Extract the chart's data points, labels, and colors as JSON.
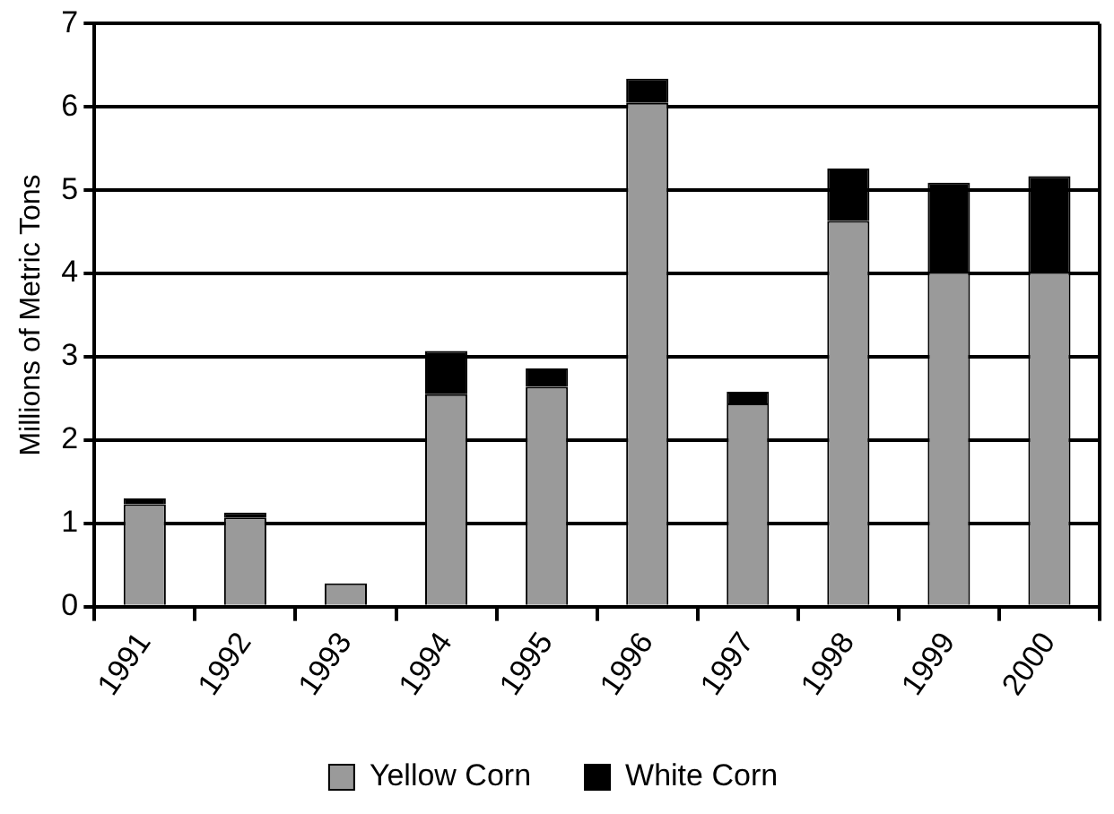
{
  "chart_data": {
    "type": "bar",
    "stacked": true,
    "ylabel": "Millions of Metric Tons",
    "categories": [
      "1991",
      "1992",
      "1993",
      "1994",
      "1995",
      "1996",
      "1997",
      "1998",
      "1999",
      "2000"
    ],
    "series": [
      {
        "name": "Yellow Corn",
        "color": "#9a9a9a",
        "values": [
          1.23,
          1.07,
          0.28,
          2.55,
          2.64,
          6.05,
          2.44,
          4.63,
          4.02,
          4.02
        ]
      },
      {
        "name": "White Corn",
        "color": "#000000",
        "values": [
          0.07,
          0.06,
          0,
          0.52,
          0.22,
          0.29,
          0.14,
          0.63,
          1.07,
          1.15
        ]
      }
    ],
    "ylim": [
      0,
      7
    ],
    "yticks": [
      0,
      1,
      2,
      3,
      4,
      5,
      6,
      7
    ],
    "grid": "y",
    "legend": "bottom"
  }
}
